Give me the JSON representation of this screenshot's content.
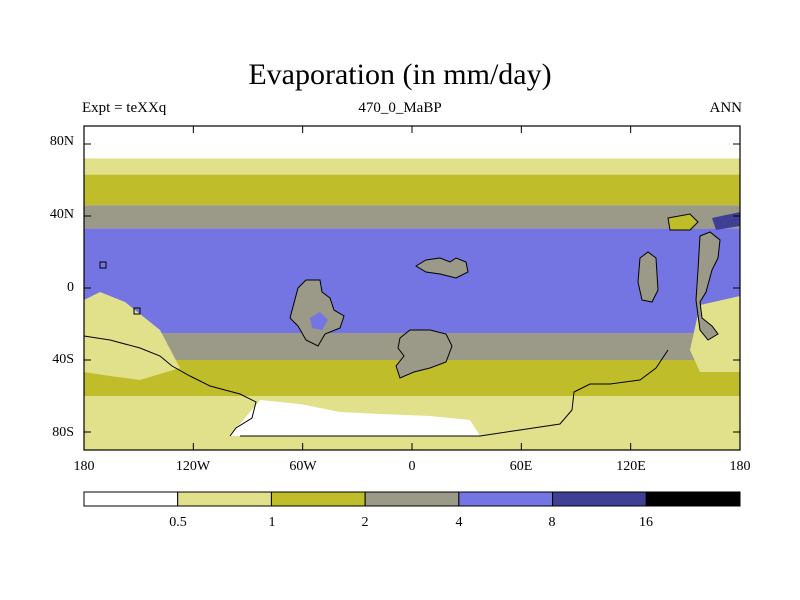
{
  "header": {
    "title": "Evaporation (in mm/day)",
    "left": "Expt = teXXq",
    "center": "470_0_MaBP",
    "right": "ANN"
  },
  "chart_data": {
    "type": "heatmap",
    "title": "Evaporation (in mm/day)",
    "subtitle": "470_0_MaBP",
    "annotations": [
      "Expt = teXXq",
      "ANN"
    ],
    "x_ticks": [
      "180",
      "120W",
      "60W",
      "0",
      "60E",
      "120E",
      "180"
    ],
    "x_tick_values": [
      -180,
      -120,
      -60,
      0,
      60,
      120,
      180
    ],
    "y_ticks": [
      "80N",
      "40N",
      "0",
      "40S",
      "80S"
    ],
    "y_tick_values": [
      80,
      40,
      0,
      -40,
      -80
    ],
    "xlim": [
      -180,
      180
    ],
    "ylim": [
      -90,
      90
    ],
    "colorbar": {
      "levels": [
        "0.5",
        "1",
        "2",
        "4",
        "8",
        "16"
      ],
      "level_values": [
        0.5,
        1,
        2,
        4,
        8,
        16
      ],
      "colors": [
        "#ffffff",
        "#e1e08b",
        "#c0bd2a",
        "#9b9a88",
        "#7474e2",
        "#3f3f95",
        "#000000"
      ]
    },
    "bands": [
      {
        "lat_range": [
          72,
          90
        ],
        "level": "<0.5"
      },
      {
        "lat_range": [
          63,
          72
        ],
        "level": "0.5-1"
      },
      {
        "lat_range": [
          46,
          63
        ],
        "level": "1-2"
      },
      {
        "lat_range": [
          33,
          46
        ],
        "level": "2-4"
      },
      {
        "lat_range": [
          -25,
          33
        ],
        "level": "4-8"
      },
      {
        "lat_range": [
          -40,
          -25
        ],
        "level": "2-4"
      },
      {
        "lat_range": [
          -60,
          -40
        ],
        "level": "1-2"
      },
      {
        "lat_range": [
          -90,
          -60
        ],
        "level": "0.5-1"
      }
    ]
  }
}
